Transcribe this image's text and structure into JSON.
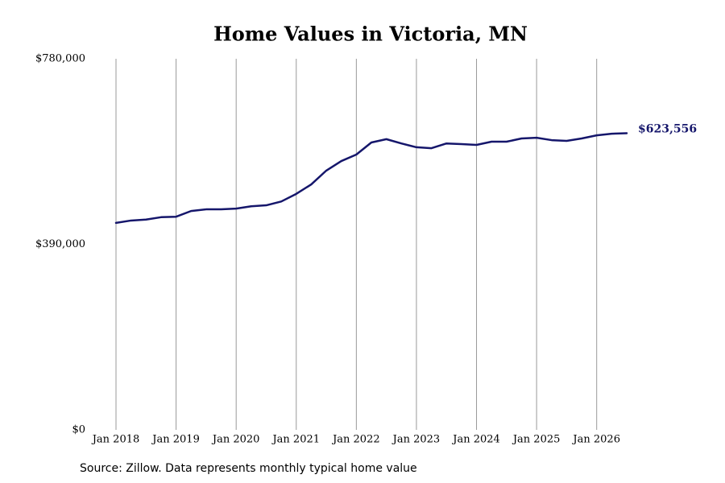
{
  "chart_data": {
    "type": "line",
    "title": "Home Values in Victoria, MN",
    "source": "Source: Zillow. Data represents monthly typical home value",
    "color": "#15166b",
    "grid": true,
    "x": [
      "2018-01",
      "2018-04",
      "2018-07",
      "2018-10",
      "2019-01",
      "2019-04",
      "2019-07",
      "2019-10",
      "2020-01",
      "2020-04",
      "2020-07",
      "2020-10",
      "2021-01",
      "2021-04",
      "2021-07",
      "2021-10",
      "2022-01",
      "2022-04",
      "2022-07",
      "2022-10",
      "2023-01",
      "2023-04",
      "2023-07",
      "2023-10",
      "2024-01",
      "2024-04",
      "2024-07",
      "2024-10",
      "2025-01",
      "2025-04",
      "2025-07",
      "2025-10",
      "2026-01",
      "2026-04",
      "2026-07"
    ],
    "values": [
      435000,
      440000,
      442000,
      447000,
      448000,
      460000,
      463500,
      463500,
      465000,
      470000,
      472000,
      480000,
      496000,
      516000,
      545000,
      565000,
      578600,
      604000,
      611000,
      602000,
      594000,
      592000,
      602000,
      600600,
      599000,
      605700,
      605700,
      612500,
      614000,
      609000,
      607400,
      612500,
      619000,
      622500,
      623556
    ],
    "value_labels": [
      null,
      null,
      null,
      null,
      null,
      null,
      null,
      null,
      null,
      null,
      null,
      null,
      null,
      null,
      null,
      null,
      null,
      null,
      null,
      null,
      null,
      null,
      null,
      null,
      null,
      null,
      null,
      null,
      null,
      null,
      null,
      null,
      null,
      null,
      "$623,556"
    ],
    "xlim": [
      "2018-01",
      "2026-07"
    ],
    "xticks": [
      {
        "value": "2018-01",
        "label": "Jan 2018"
      },
      {
        "value": "2019-01",
        "label": "Jan 2019"
      },
      {
        "value": "2020-01",
        "label": "Jan 2020"
      },
      {
        "value": "2021-01",
        "label": "Jan 2021"
      },
      {
        "value": "2022-01",
        "label": "Jan 2022"
      },
      {
        "value": "2023-01",
        "label": "Jan 2023"
      },
      {
        "value": "2024-01",
        "label": "Jan 2024"
      },
      {
        "value": "2025-01",
        "label": "Jan 2025"
      },
      {
        "value": "2026-01",
        "label": "Jan 2026"
      }
    ],
    "ylim": [
      0,
      780000
    ],
    "yticks": [
      {
        "value": 0,
        "label": "$0"
      },
      {
        "value": 390000,
        "label": "$390,000"
      },
      {
        "value": 780000,
        "label": "$780,000"
      }
    ]
  }
}
